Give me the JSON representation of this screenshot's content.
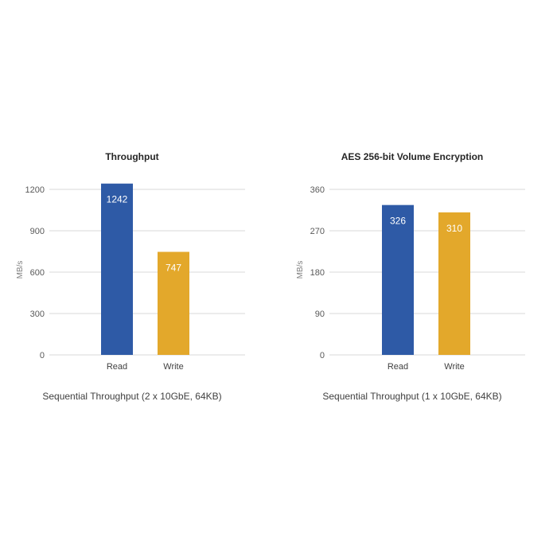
{
  "colors": {
    "read": "#2e5aa6",
    "write": "#e3a82b"
  },
  "chart_data": [
    {
      "type": "bar",
      "title": "Throughput",
      "ylabel": "MB/s",
      "xlabel": "",
      "categories": [
        "Read",
        "Write"
      ],
      "values": [
        1242,
        747
      ],
      "data_labels": [
        "1242",
        "747"
      ],
      "ylim": [
        0,
        1200
      ],
      "yticks": [
        0,
        300,
        600,
        900,
        1200
      ],
      "grid": true,
      "caption": "Sequential Throughput (2 x 10GbE, 64KB)"
    },
    {
      "type": "bar",
      "title": "AES 256-bit Volume Encryption",
      "ylabel": "MB/s",
      "xlabel": "",
      "categories": [
        "Read",
        "Write"
      ],
      "values": [
        326,
        310
      ],
      "data_labels": [
        "326",
        "310"
      ],
      "ylim": [
        0,
        360
      ],
      "yticks": [
        0,
        90,
        180,
        270,
        360
      ],
      "grid": true,
      "caption": "Sequential Throughput (1 x 10GbE, 64KB)"
    }
  ]
}
